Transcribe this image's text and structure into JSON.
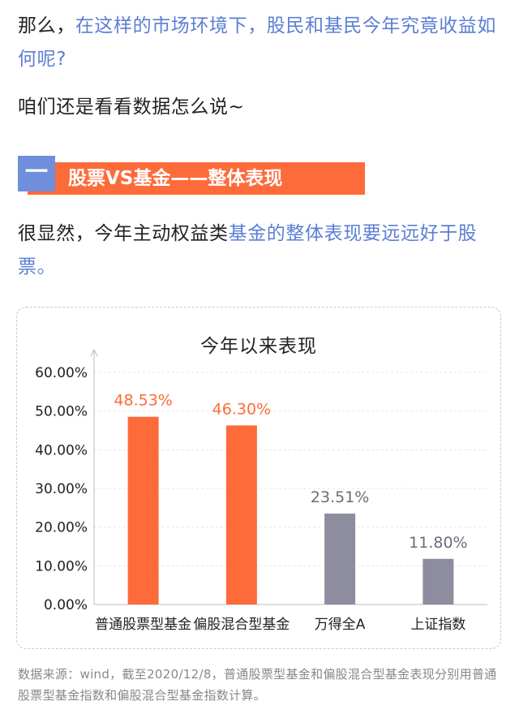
{
  "intro": {
    "lead": "那么，",
    "highlight": "在这样的市场环境下，股民和基民今年究竟收益如何呢?"
  },
  "line2": "咱们还是看看数据怎么说~",
  "section": {
    "number": "一",
    "title": "股票VS基金——整体表现"
  },
  "conclusion": {
    "lead": "很显然，今年主动权益类",
    "highlight": "基金的整体表现要远远好于股票。"
  },
  "colors": {
    "highlight": "#5b7fd4",
    "fund_bar": "#fd6b3b",
    "index_bar": "#8e8d9f",
    "section_square": "#6f8fdc"
  },
  "chart_data": {
    "type": "bar",
    "title": "今年以来表现",
    "categories": [
      "普通股票型基金",
      "偏股混合型基金",
      "万得全A",
      "上证指数"
    ],
    "values": [
      48.53,
      46.3,
      23.51,
      11.8
    ],
    "data_labels": [
      "48.53%",
      "46.30%",
      "23.51%",
      "11.80%"
    ],
    "bar_colors": [
      "#fd6b3b",
      "#fd6b3b",
      "#8e8d9f",
      "#8e8d9f"
    ],
    "ylim": [
      0,
      60
    ],
    "yticks": [
      "0.00%",
      "10.00%",
      "20.00%",
      "30.00%",
      "40.00%",
      "50.00%",
      "60.00%"
    ],
    "ytick_values": [
      0,
      10,
      20,
      30,
      40,
      50,
      60
    ],
    "xlabel": "",
    "ylabel": "",
    "grid": true
  },
  "source_note": "数据来源：wind，截至2020/12/8，普通股票型基金和偏股混合型基金表现分别用普通股票型基金指数和偏股混合型基金指数计算。"
}
